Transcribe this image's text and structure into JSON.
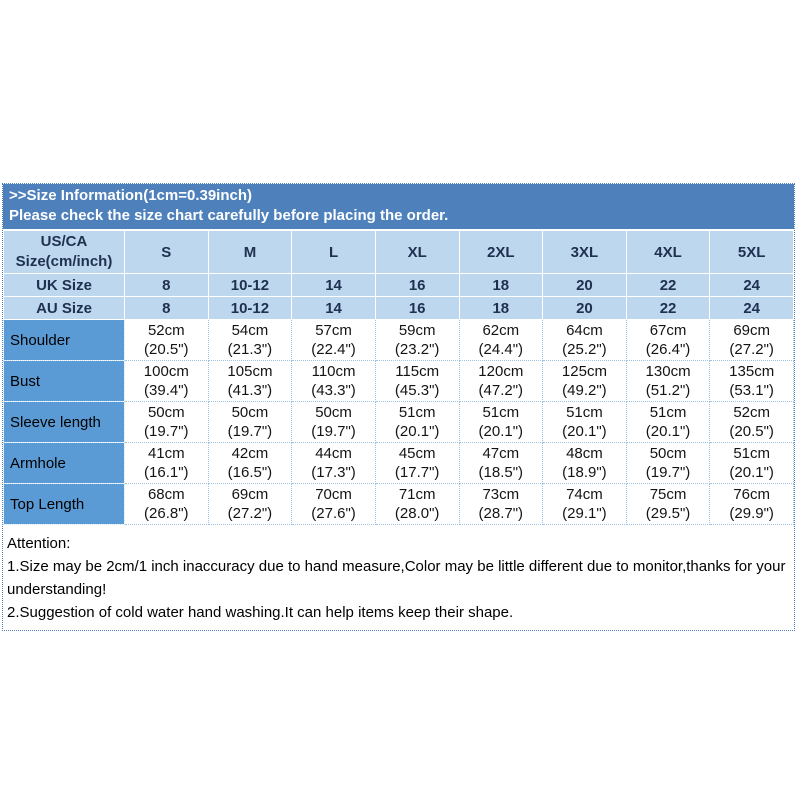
{
  "colors": {
    "banner_bg": "#4E80BC",
    "banner_text": "#FFFFFF",
    "header_cell_bg": "#BDD7EE",
    "header_text": "#1F3050",
    "row_label_bg": "#5B9BD5",
    "grid_line": "#9DC3E6",
    "outer_border": "#4F81BD"
  },
  "banner": {
    "line1": ">>Size Information(1cm=0.39inch)",
    "line2": "Please check the size chart carefully before placing the order."
  },
  "table": {
    "corner": {
      "line1": "US/CA",
      "line2": "Size(cm/inch)"
    },
    "sizes": [
      "S",
      "M",
      "L",
      "XL",
      "2XL",
      "3XL",
      "4XL",
      "5XL"
    ],
    "size_system_rows": [
      {
        "label": "UK Size",
        "values": [
          "8",
          "10-12",
          "14",
          "16",
          "18",
          "20",
          "22",
          "24"
        ]
      },
      {
        "label": "AU Size",
        "values": [
          "8",
          "10-12",
          "14",
          "16",
          "18",
          "20",
          "22",
          "24"
        ]
      }
    ],
    "measurement_rows": [
      {
        "label": "Shoulder",
        "cm": [
          "52cm",
          "54cm",
          "57cm",
          "59cm",
          "62cm",
          "64cm",
          "67cm",
          "69cm"
        ],
        "inch": [
          "(20.5\")",
          "(21.3\")",
          "(22.4\")",
          "(23.2\")",
          "(24.4\")",
          "(25.2\")",
          "(26.4\")",
          "(27.2\")"
        ]
      },
      {
        "label": "Bust",
        "cm": [
          "100cm",
          "105cm",
          "110cm",
          "115cm",
          "120cm",
          "125cm",
          "130cm",
          "135cm"
        ],
        "inch": [
          "(39.4\")",
          "(41.3\")",
          "(43.3\")",
          "(45.3\")",
          "(47.2\")",
          "(49.2\")",
          "(51.2\")",
          "(53.1\")"
        ]
      },
      {
        "label": "Sleeve length",
        "cm": [
          "50cm",
          "50cm",
          "50cm",
          "51cm",
          "51cm",
          "51cm",
          "51cm",
          "52cm"
        ],
        "inch": [
          "(19.7\")",
          "(19.7\")",
          "(19.7\")",
          "(20.1\")",
          "(20.1\")",
          "(20.1\")",
          "(20.1\")",
          "(20.5\")"
        ]
      },
      {
        "label": "Armhole",
        "cm": [
          "41cm",
          "42cm",
          "44cm",
          "45cm",
          "47cm",
          "48cm",
          "50cm",
          "51cm"
        ],
        "inch": [
          "(16.1\")",
          "(16.5\")",
          "(17.3\")",
          "(17.7\")",
          "(18.5\")",
          "(18.9\")",
          "(19.7\")",
          "(20.1\")"
        ]
      },
      {
        "label": "Top Length",
        "cm": [
          "68cm",
          "69cm",
          "70cm",
          "71cm",
          "73cm",
          "74cm",
          "75cm",
          "76cm"
        ],
        "inch": [
          "(26.8\")",
          "(27.2\")",
          "(27.6\")",
          "(28.0\")",
          "(28.7\")",
          "(29.1\")",
          "(29.5\")",
          "(29.9\")"
        ]
      }
    ]
  },
  "attention": {
    "title": "Attention:",
    "line1": "1.Size may be 2cm/1 inch inaccuracy due to hand measure,Color may be little different due to monitor,thanks for your understanding!",
    "line2": "2.Suggestion of cold water hand washing.It can help items keep their shape."
  }
}
